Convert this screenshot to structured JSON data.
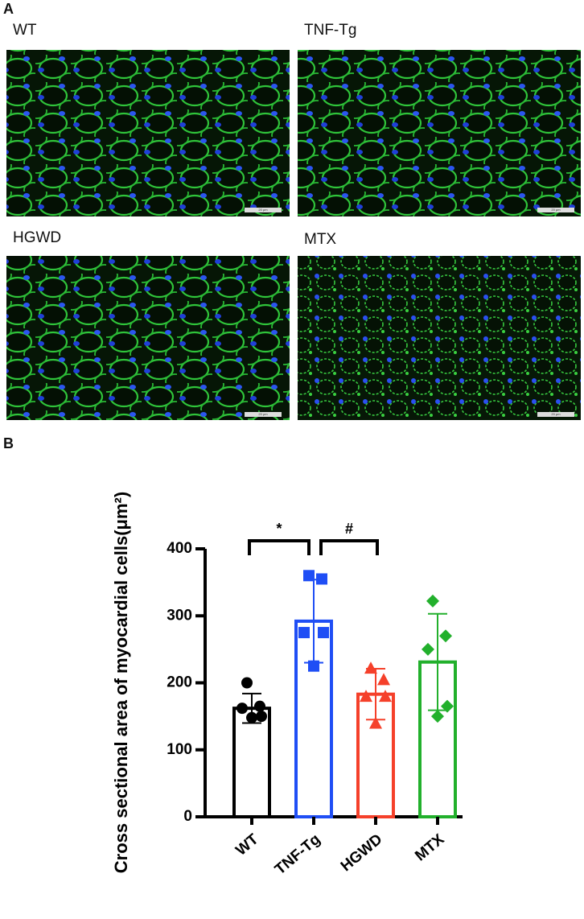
{
  "panel_a": {
    "label": "A",
    "images": [
      {
        "label": "WT",
        "scale_bar": "20 μm"
      },
      {
        "label": "TNF-Tg",
        "scale_bar": "20 μm"
      },
      {
        "label": "HGWD",
        "scale_bar": "20 μm"
      },
      {
        "label": "MTX",
        "scale_bar": "20 μm"
      }
    ]
  },
  "panel_b": {
    "label": "B"
  },
  "chart_data": {
    "type": "bar",
    "y_label": "Cross sectional area of myocardial cells(μm²)",
    "categories": [
      "WT",
      "TNF-Tg",
      "HGWD",
      "MTX"
    ],
    "colors": [
      "#000000",
      "#1f4ef5",
      "#f5402a",
      "#22b02c"
    ],
    "markers": [
      "circle",
      "square",
      "triangle",
      "diamond"
    ],
    "means": [
      162,
      292,
      183,
      231
    ],
    "errors": [
      22,
      62,
      38,
      72
    ],
    "points": [
      [
        200,
        165,
        162,
        150,
        148
      ],
      [
        360,
        355,
        275,
        275,
        225
      ],
      [
        222,
        205,
        180,
        180,
        140
      ],
      [
        322,
        270,
        250,
        165,
        150
      ]
    ],
    "ylim": [
      0,
      400
    ],
    "yticks": [
      0,
      100,
      200,
      300,
      400
    ],
    "annotations": [
      {
        "text": "*",
        "between": [
          "WT",
          "TNF-Tg"
        ]
      },
      {
        "text": "#",
        "between": [
          "TNF-Tg",
          "HGWD"
        ]
      }
    ]
  }
}
